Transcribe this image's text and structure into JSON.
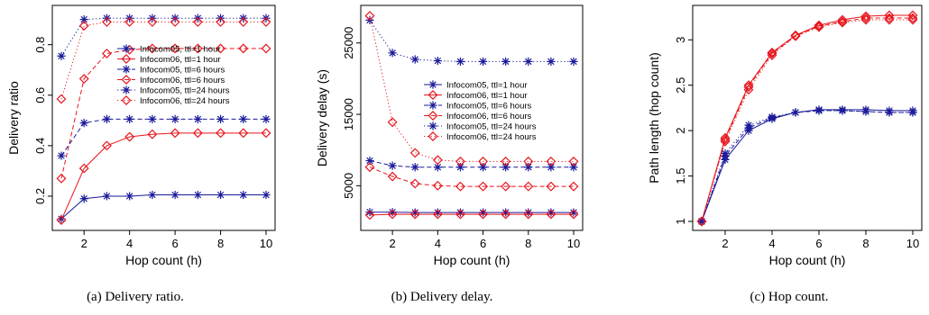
{
  "colors": {
    "infocom05": "#1a1a9a",
    "infocom06": "#e8161e"
  },
  "legend_entries": [
    "Infocom05, ttl=1 hour",
    "Infocom06, ttl=1 hour",
    "Infocom05, ttl=6 hours",
    "Infocom06, ttl=6 hours",
    "Infocom05, ttl=24 hours",
    "Infocom06, ttl=24 hours"
  ],
  "chart_data": [
    {
      "type": "line",
      "caption": "(a) Delivery ratio.",
      "xlabel": "Hop count (h)",
      "ylabel": "Delivery ratio",
      "xlim": [
        1,
        10
      ],
      "ylim": [
        0.1,
        0.92
      ],
      "xticks": [
        2,
        4,
        6,
        8,
        10
      ],
      "yticks": [
        0.2,
        0.4,
        0.6,
        0.8
      ],
      "x": [
        1,
        2,
        3,
        4,
        5,
        6,
        7,
        8,
        9,
        10
      ],
      "legend_position": "top-right",
      "series": [
        {
          "name": "Infocom05, ttl=1 hour",
          "dataset": "infocom05",
          "line": "solid",
          "marker": "asterisk",
          "values": [
            0.11,
            0.19,
            0.2,
            0.2,
            0.205,
            0.205,
            0.205,
            0.205,
            0.205,
            0.205
          ]
        },
        {
          "name": "Infocom06, ttl=1 hour",
          "dataset": "infocom06",
          "line": "solid",
          "marker": "diamond",
          "values": [
            0.105,
            0.31,
            0.4,
            0.435,
            0.445,
            0.45,
            0.45,
            0.45,
            0.45,
            0.45
          ]
        },
        {
          "name": "Infocom05, ttl=6 hours",
          "dataset": "infocom05",
          "line": "dashed",
          "marker": "asterisk",
          "values": [
            0.36,
            0.49,
            0.505,
            0.505,
            0.505,
            0.505,
            0.505,
            0.505,
            0.505,
            0.505
          ]
        },
        {
          "name": "Infocom06, ttl=6 hours",
          "dataset": "infocom06",
          "line": "dashed",
          "marker": "diamond",
          "values": [
            0.27,
            0.665,
            0.765,
            0.78,
            0.785,
            0.785,
            0.785,
            0.785,
            0.785,
            0.785
          ]
        },
        {
          "name": "Infocom05, ttl=24 hours",
          "dataset": "infocom05",
          "line": "dotted",
          "marker": "asterisk",
          "values": [
            0.755,
            0.9,
            0.905,
            0.905,
            0.905,
            0.905,
            0.905,
            0.905,
            0.905,
            0.905
          ]
        },
        {
          "name": "Infocom06, ttl=24 hours",
          "dataset": "infocom06",
          "line": "dotted",
          "marker": "diamond",
          "values": [
            0.585,
            0.875,
            0.89,
            0.89,
            0.89,
            0.89,
            0.89,
            0.89,
            0.89,
            0.89
          ]
        }
      ]
    },
    {
      "type": "line",
      "caption": "(b) Delivery delay.",
      "xlabel": "Hop count (h)",
      "ylabel": "Delivery delay (s)",
      "xlim": [
        1,
        10
      ],
      "ylim": [
        0,
        29000
      ],
      "xticks": [
        2,
        4,
        6,
        8,
        10
      ],
      "yticks": [
        5000,
        15000,
        25000
      ],
      "x": [
        1,
        2,
        3,
        4,
        5,
        6,
        7,
        8,
        9,
        10
      ],
      "legend_position": "center-right",
      "series": [
        {
          "name": "Infocom05, ttl=1 hour",
          "dataset": "infocom05",
          "line": "solid",
          "marker": "asterisk",
          "values": [
            1300,
            1300,
            1250,
            1250,
            1250,
            1250,
            1250,
            1250,
            1250,
            1250
          ]
        },
        {
          "name": "Infocom06, ttl=1 hour",
          "dataset": "infocom06",
          "line": "solid",
          "marker": "diamond",
          "values": [
            900,
            1000,
            1000,
            1000,
            1000,
            1000,
            1000,
            1000,
            1000,
            1000
          ]
        },
        {
          "name": "Infocom05, ttl=6 hours",
          "dataset": "infocom05",
          "line": "dashed",
          "marker": "asterisk",
          "values": [
            8500,
            7800,
            7600,
            7600,
            7600,
            7600,
            7600,
            7600,
            7600,
            7600
          ]
        },
        {
          "name": "Infocom06, ttl=6 hours",
          "dataset": "infocom06",
          "line": "dashed",
          "marker": "diamond",
          "values": [
            7600,
            6300,
            5300,
            5000,
            4900,
            4900,
            4900,
            4900,
            4900,
            4900
          ]
        },
        {
          "name": "Infocom05, ttl=24 hours",
          "dataset": "infocom05",
          "line": "dotted",
          "marker": "asterisk",
          "values": [
            28200,
            23600,
            22700,
            22500,
            22400,
            22400,
            22400,
            22400,
            22400,
            22400
          ]
        },
        {
          "name": "Infocom06, ttl=24 hours",
          "dataset": "infocom06",
          "line": "dotted",
          "marker": "diamond",
          "values": [
            28800,
            13900,
            9600,
            8600,
            8400,
            8400,
            8400,
            8400,
            8400,
            8400
          ]
        }
      ]
    },
    {
      "type": "line",
      "caption": "(c) Hop count.",
      "xlabel": "Hop count (h)",
      "ylabel": "Path length (hop count)",
      "xlim": [
        1,
        10
      ],
      "ylim": [
        1.0,
        3.28
      ],
      "xticks": [
        2,
        4,
        6,
        8,
        10
      ],
      "yticks": [
        1.0,
        1.5,
        2.0,
        2.5,
        3.0
      ],
      "x": [
        1,
        2,
        3,
        4,
        5,
        6,
        7,
        8,
        9,
        10
      ],
      "legend_position": "none",
      "series": [
        {
          "name": "Infocom05, ttl=1 hour",
          "dataset": "infocom05",
          "line": "solid",
          "marker": "asterisk",
          "values": [
            1.0,
            1.68,
            2.0,
            2.13,
            2.2,
            2.23,
            2.23,
            2.23,
            2.22,
            2.22
          ]
        },
        {
          "name": "Infocom06, ttl=1 hour",
          "dataset": "infocom06",
          "line": "solid",
          "marker": "diamond",
          "values": [
            1.0,
            1.92,
            2.5,
            2.86,
            3.05,
            3.16,
            3.22,
            3.26,
            3.27,
            3.27
          ]
        },
        {
          "name": "Infocom05, ttl=6 hours",
          "dataset": "infocom05",
          "line": "dashed",
          "marker": "asterisk",
          "values": [
            1.0,
            1.72,
            2.03,
            2.14,
            2.2,
            2.22,
            2.22,
            2.21,
            2.2,
            2.2
          ]
        },
        {
          "name": "Infocom06, ttl=6 hours",
          "dataset": "infocom06",
          "line": "dashed",
          "marker": "diamond",
          "values": [
            1.0,
            1.9,
            2.48,
            2.85,
            3.04,
            3.15,
            3.2,
            3.24,
            3.24,
            3.24
          ]
        },
        {
          "name": "Infocom05, ttl=24 hours",
          "dataset": "infocom05",
          "line": "dotted",
          "marker": "asterisk",
          "values": [
            1.0,
            1.75,
            2.06,
            2.15,
            2.2,
            2.22,
            2.22,
            2.21,
            2.2,
            2.2
          ]
        },
        {
          "name": "Infocom06, ttl=24 hours",
          "dataset": "infocom06",
          "line": "dotted",
          "marker": "diamond",
          "values": [
            1.0,
            1.88,
            2.45,
            2.83,
            3.04,
            3.14,
            3.19,
            3.22,
            3.22,
            3.22
          ]
        }
      ]
    }
  ]
}
